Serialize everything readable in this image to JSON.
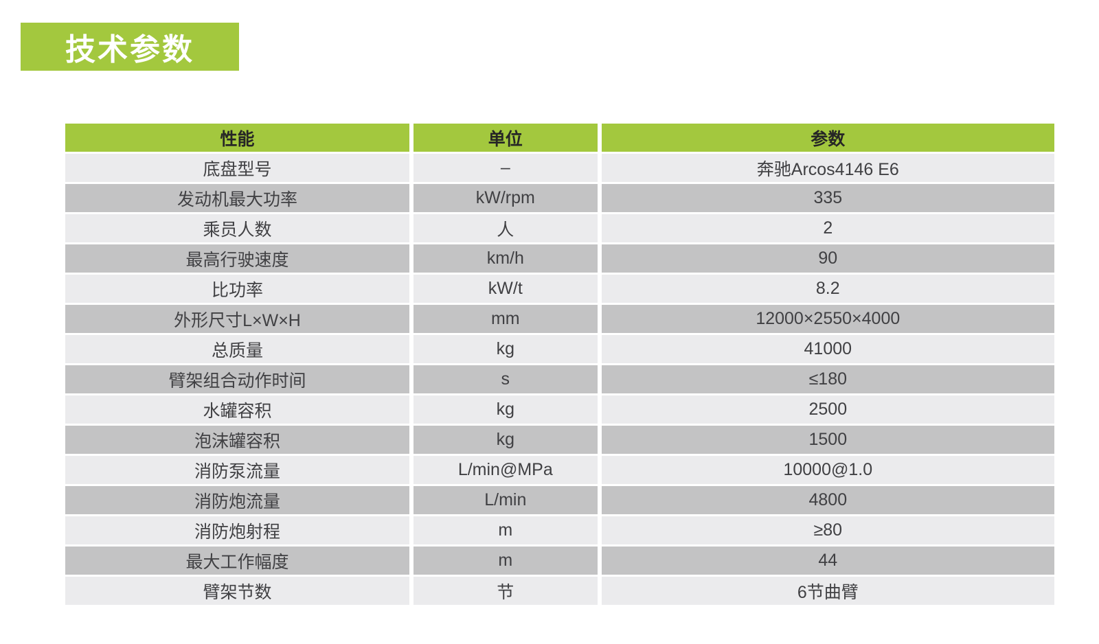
{
  "page": {
    "background": "#ffffff",
    "accent_green": "#a3c83e",
    "row_light": "#ebebed",
    "row_dark": "#c3c3c4",
    "text_dark": "#404043",
    "header_text": "#262626"
  },
  "title_badge": {
    "label": "技术参数"
  },
  "table": {
    "headers": [
      "性能",
      "单位",
      "参数"
    ],
    "rows": [
      {
        "name": "底盘型号",
        "unit": "–",
        "value": "奔驰Arcos4146 E6"
      },
      {
        "name": "发动机最大功率",
        "unit": "kW/rpm",
        "value": "335"
      },
      {
        "name": "乘员人数",
        "unit": "人",
        "value": "2"
      },
      {
        "name": "最高行驶速度",
        "unit": "km/h",
        "value": "90"
      },
      {
        "name": "比功率",
        "unit": "kW/t",
        "value": "8.2"
      },
      {
        "name": "外形尺寸L×W×H",
        "unit": "mm",
        "value": "12000×2550×4000"
      },
      {
        "name": "总质量",
        "unit": "kg",
        "value": "41000"
      },
      {
        "name": "臂架组合动作时间",
        "unit": "s",
        "value": "≤180"
      },
      {
        "name": "水罐容积",
        "unit": "kg",
        "value": "2500"
      },
      {
        "name": "泡沫罐容积",
        "unit": "kg",
        "value": "1500"
      },
      {
        "name": "消防泵流量",
        "unit": "L/min@MPa",
        "value": "10000@1.0"
      },
      {
        "name": "消防炮流量",
        "unit": "L/min",
        "value": "4800"
      },
      {
        "name": "消防炮射程",
        "unit": "m",
        "value": "≥80"
      },
      {
        "name": "最大工作幅度",
        "unit": "m",
        "value": "44"
      },
      {
        "name": "臂架节数",
        "unit": "节",
        "value": "6节曲臂"
      }
    ]
  }
}
